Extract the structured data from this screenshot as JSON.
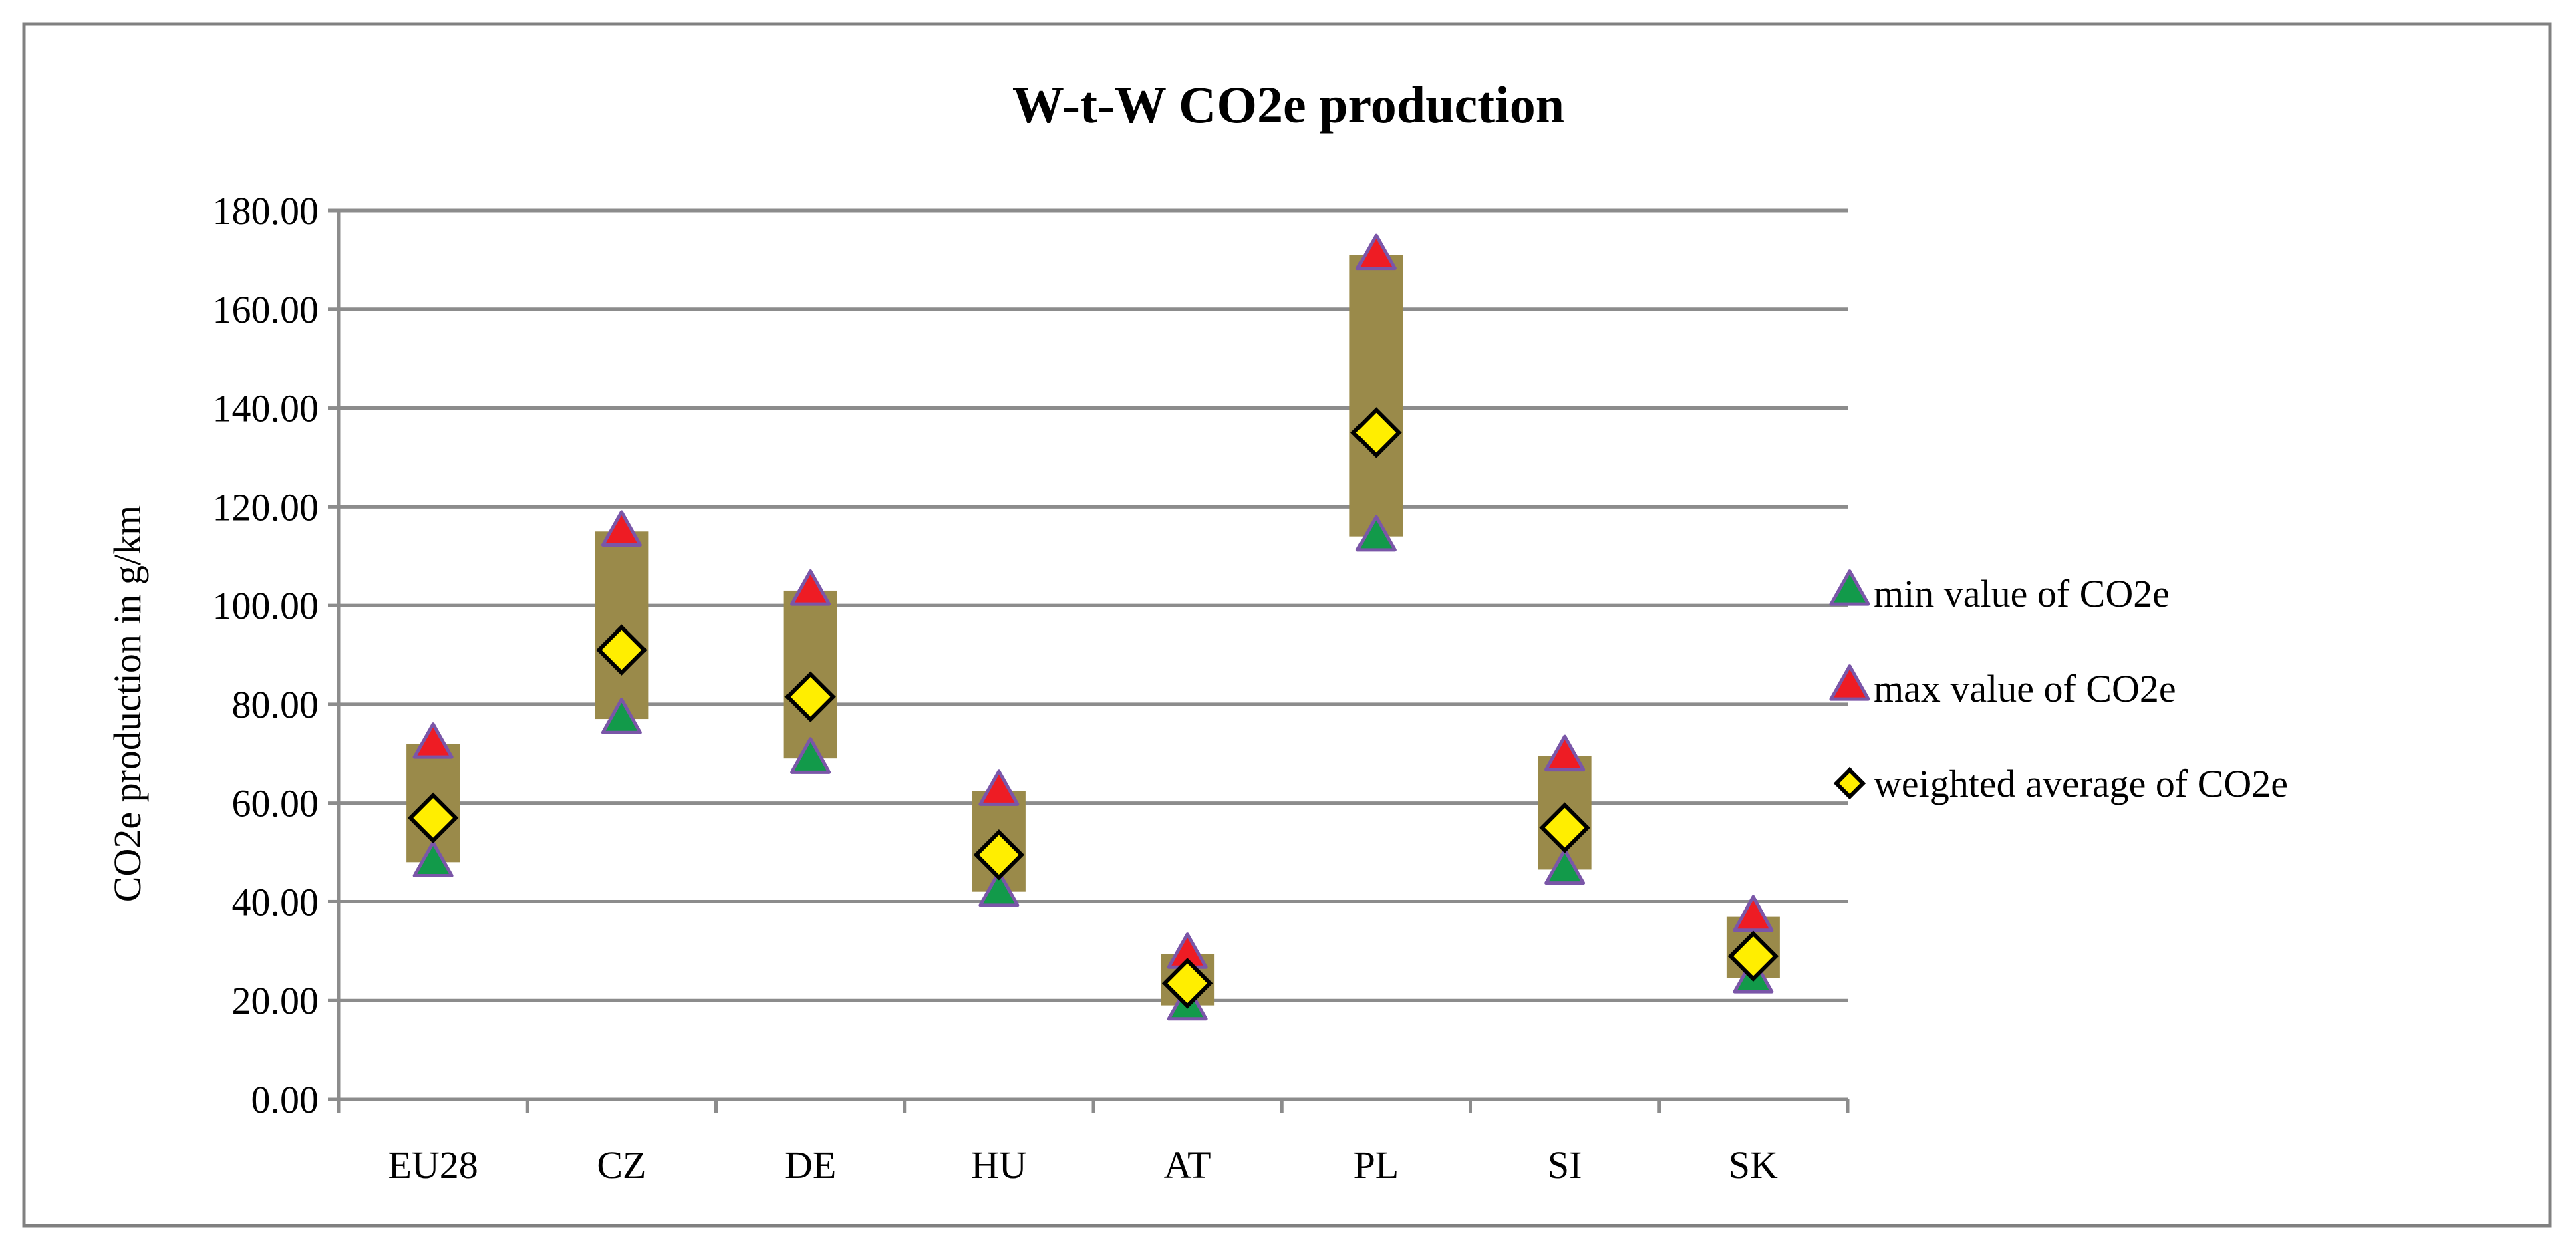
{
  "chart_data": {
    "type": "scatter",
    "title": "W-t-W CO2e production",
    "xlabel": "",
    "ylabel": "CO2e production in g/km",
    "ylim": [
      0,
      180
    ],
    "ytick_step": 20,
    "ytick_labels": [
      "0.00",
      "20.00",
      "40.00",
      "60.00",
      "80.00",
      "100.00",
      "120.00",
      "140.00",
      "160.00",
      "180.00"
    ],
    "grid": true,
    "legend_position": "right",
    "categories": [
      "EU28",
      "CZ",
      "DE",
      "HU",
      "AT",
      "PL",
      "SI",
      "SK"
    ],
    "range_band": {
      "low": [
        48,
        77,
        69,
        42,
        19,
        114,
        46.5,
        24.5
      ],
      "high": [
        72,
        115,
        103,
        62.5,
        29.5,
        171,
        69.5,
        37
      ]
    },
    "series": [
      {
        "name": "min value of CO2e",
        "marker": "triangle",
        "values": [
          48,
          77,
          69,
          42,
          19,
          114,
          46.5,
          24.5
        ]
      },
      {
        "name": "max value of CO2e",
        "marker": "triangle",
        "values": [
          72,
          115,
          103,
          62.5,
          29.5,
          171,
          69.5,
          37
        ]
      },
      {
        "name": "weighted average of CO2e",
        "marker": "diamond",
        "values": [
          57,
          91,
          81.5,
          49.5,
          23.5,
          135,
          55,
          29
        ]
      }
    ]
  },
  "colors": {
    "band": "#9a8a4a",
    "min_fill": "#129a4a",
    "max_fill": "#ee1c24",
    "triangle_stroke": "#7a56a8",
    "diamond_fill": "#ffee00",
    "diamond_stroke": "#000000",
    "grid": "#8c8c8c",
    "frame": "#808080"
  }
}
